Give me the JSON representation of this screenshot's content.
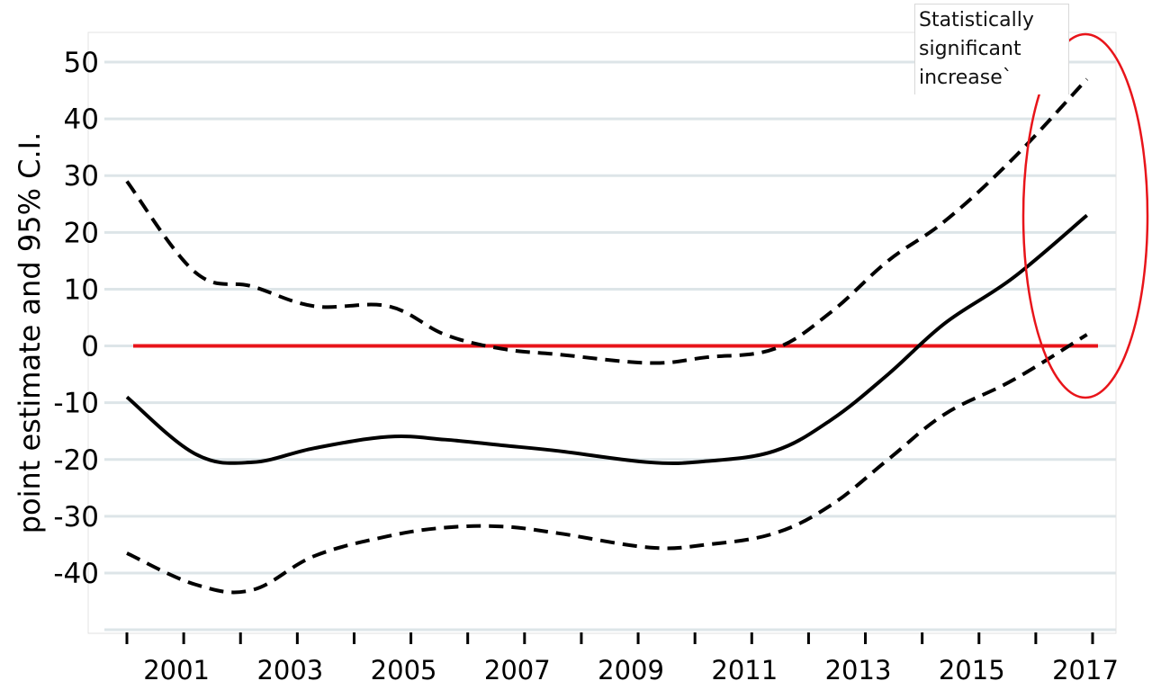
{
  "chart_data": {
    "type": "line",
    "title": "",
    "xlabel": "",
    "ylabel": "point estimate and 95% C.I.",
    "x": [
      2000,
      2001,
      2002,
      2003,
      2004,
      2005,
      2006,
      2007,
      2008,
      2009,
      2010,
      2011,
      2012,
      2013,
      2014,
      2015,
      2016,
      2017
    ],
    "x_tick_labels": [
      "2001",
      "2003",
      "2005",
      "2007",
      "2009",
      "2011",
      "2013",
      "2015",
      "2017"
    ],
    "y_tick_labels": [
      "50",
      "40",
      "30",
      "20",
      "10",
      "0",
      "-10",
      "-20",
      "-30",
      "-40"
    ],
    "ylim": [
      -50,
      55
    ],
    "grid": true,
    "series": [
      {
        "values": [
          -9,
          -19,
          -20.5,
          -18,
          -16,
          -16.5,
          -17.5,
          -18.5,
          -20.5,
          -20.3,
          -18.5,
          -13,
          -5,
          4,
          12,
          23
        ],
        "x": [
          2000,
          2001.2,
          2002.2,
          2003.3,
          2004.6,
          2005.6,
          2006.6,
          2007.6,
          2009.2,
          2010.2,
          2011.4,
          2012.4,
          2013.4,
          2014.4,
          2015.6,
          2016.9
        ],
        "style": "solid",
        "color": "#000000"
      },
      {
        "values": [
          29,
          13,
          10.5,
          7,
          7,
          2,
          -0.5,
          -1.5,
          -3,
          -2,
          -0.5,
          6,
          15,
          22,
          33,
          47
        ],
        "x": [
          2000,
          2001.2,
          2002.2,
          2003.3,
          2004.6,
          2005.6,
          2006.6,
          2007.6,
          2009.2,
          2010.2,
          2011.4,
          2012.4,
          2013.4,
          2014.4,
          2015.6,
          2016.9
        ],
        "style": "dashed",
        "color": "#000000"
      },
      {
        "values": [
          -36.5,
          -42,
          -43,
          -37,
          -33.5,
          -32,
          -31.8,
          -33,
          -35.5,
          -35,
          -33,
          -28,
          -20,
          -12,
          -6,
          2
        ],
        "x": [
          2000,
          2001.2,
          2002.2,
          2003.3,
          2004.6,
          2005.6,
          2006.6,
          2007.6,
          2009.2,
          2010.2,
          2011.4,
          2012.4,
          2013.4,
          2014.4,
          2015.6,
          2016.9
        ],
        "style": "dashed",
        "color": "#000000"
      }
    ],
    "reference_line": {
      "y": 0,
      "color": "#e8141a"
    },
    "annotation": {
      "lines": [
        "Statistically",
        "significant",
        "increase`"
      ],
      "ellipse_color": "#e8141a"
    }
  },
  "colors": {
    "grid": "#dde5e8",
    "axis": "#000000",
    "highlight": "#e8141a"
  }
}
